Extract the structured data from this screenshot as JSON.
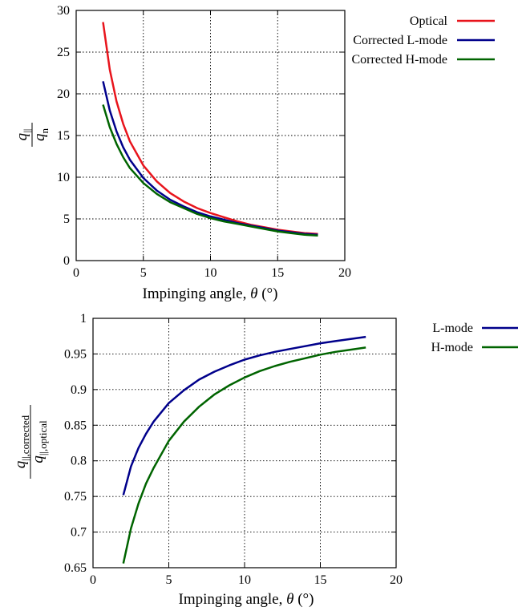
{
  "colors": {
    "optical": "#e8141c",
    "l_mode": "#00008b",
    "h_mode": "#006400"
  },
  "chart_data": [
    {
      "type": "line",
      "xlabel_prefix": "Impinging angle, ",
      "xlabel_symbol": "θ",
      "xlabel_unit": " (°)",
      "ylabel": {
        "numerator": "q",
        "numerator_sub": "||",
        "denominator": "q",
        "denominator_sub": "n"
      },
      "xlim": [
        0,
        20
      ],
      "ylim": [
        0,
        30
      ],
      "xticks": [
        "0",
        "5",
        "10",
        "15",
        "20"
      ],
      "yticks": [
        "0",
        "5",
        "10",
        "15",
        "20",
        "25",
        "30"
      ],
      "grid": true,
      "legend_position": "outside-right-top",
      "series": [
        {
          "name": "Optical",
          "color_key": "optical",
          "x": [
            2,
            2.5,
            3,
            3.5,
            4,
            5,
            6,
            7,
            8,
            9,
            10,
            11,
            12,
            13,
            14,
            15,
            16,
            17,
            18
          ],
          "y": [
            28.6,
            22.9,
            19.1,
            16.4,
            14.3,
            11.4,
            9.5,
            8.1,
            7.1,
            6.3,
            5.7,
            5.2,
            4.7,
            4.3,
            4.0,
            3.7,
            3.5,
            3.3,
            3.2
          ]
        },
        {
          "name": "Corrected L-mode",
          "color_key": "l_mode",
          "x": [
            2,
            2.5,
            3,
            3.5,
            4,
            5,
            6,
            7,
            8,
            9,
            10,
            11,
            12,
            13,
            14,
            15,
            16,
            17,
            18
          ],
          "y": [
            21.5,
            18.0,
            15.5,
            13.6,
            12.1,
            9.9,
            8.4,
            7.3,
            6.5,
            5.8,
            5.3,
            4.9,
            4.5,
            4.2,
            3.9,
            3.6,
            3.4,
            3.2,
            3.1
          ]
        },
        {
          "name": "Corrected H-mode",
          "color_key": "h_mode",
          "x": [
            2,
            2.5,
            3,
            3.5,
            4,
            5,
            6,
            7,
            8,
            9,
            10,
            11,
            12,
            13,
            14,
            15,
            16,
            17,
            18
          ],
          "y": [
            18.7,
            16.0,
            14.0,
            12.4,
            11.1,
            9.3,
            8.0,
            7.0,
            6.3,
            5.6,
            5.1,
            4.7,
            4.4,
            4.1,
            3.8,
            3.5,
            3.3,
            3.1,
            3.0
          ]
        }
      ]
    },
    {
      "type": "line",
      "xlabel_prefix": "Impinging angle, ",
      "xlabel_symbol": "θ",
      "xlabel_unit": " (°)",
      "ylabel": {
        "numerator": "q",
        "numerator_sub": "||,corrected",
        "denominator": "q",
        "denominator_sub": "||,optical"
      },
      "xlim": [
        0,
        20
      ],
      "ylim": [
        0.65,
        1.0
      ],
      "xticks": [
        "0",
        "5",
        "10",
        "15",
        "20"
      ],
      "yticks": [
        "0.65",
        "0.7",
        "0.75",
        "0.8",
        "0.85",
        "0.9",
        "0.95",
        "1"
      ],
      "grid": true,
      "legend_position": "outside-right-top",
      "series": [
        {
          "name": "L-mode",
          "color_key": "l_mode",
          "x": [
            2,
            2.5,
            3,
            3.5,
            4,
            5,
            6,
            7,
            8,
            9,
            10,
            11,
            12,
            13,
            14,
            15,
            16,
            17,
            18
          ],
          "y": [
            0.752,
            0.792,
            0.818,
            0.838,
            0.855,
            0.881,
            0.899,
            0.914,
            0.925,
            0.934,
            0.942,
            0.948,
            0.953,
            0.957,
            0.961,
            0.965,
            0.968,
            0.971,
            0.974
          ]
        },
        {
          "name": "H-mode",
          "color_key": "h_mode",
          "x": [
            2,
            2.5,
            3,
            3.5,
            4,
            5,
            6,
            7,
            8,
            9,
            10,
            11,
            12,
            13,
            14,
            15,
            16,
            17,
            18
          ],
          "y": [
            0.656,
            0.705,
            0.74,
            0.768,
            0.79,
            0.828,
            0.855,
            0.876,
            0.893,
            0.906,
            0.917,
            0.926,
            0.933,
            0.939,
            0.944,
            0.949,
            0.953,
            0.956,
            0.959
          ]
        }
      ]
    }
  ]
}
